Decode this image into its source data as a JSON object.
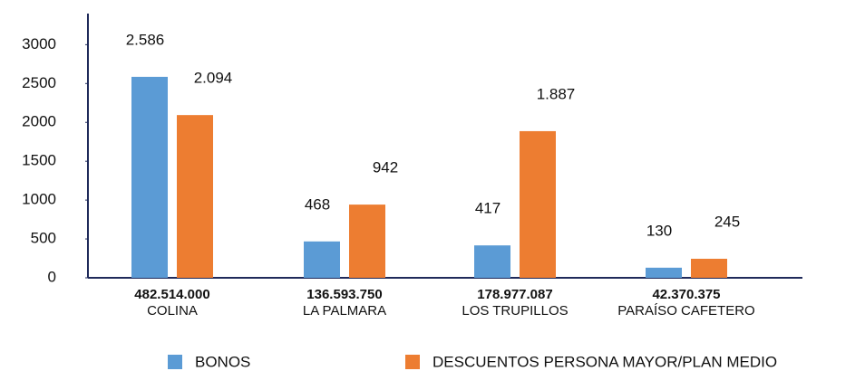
{
  "chart_data": {
    "type": "bar",
    "categories": [
      "COLINA",
      "LA PALMARA",
      "LOS TRUPILLOS",
      "PARAÍSO CAFETERO"
    ],
    "category_amounts": [
      "482.514.000",
      "136.593.750",
      "178.977.087",
      "42.370.375"
    ],
    "series": [
      {
        "name": "BONOS",
        "color": "#5b9bd5",
        "values": [
          2586,
          468,
          417,
          130
        ],
        "value_labels": [
          "2.586",
          "468",
          "417",
          "130"
        ]
      },
      {
        "name": "DESCUENTOS PERSONA MAYOR/PLAN MEDIO",
        "color": "#ed7d31",
        "values": [
          2094,
          942,
          1887,
          245
        ],
        "value_labels": [
          "2.094",
          "942",
          "1.887",
          "245"
        ]
      }
    ],
    "ylim": [
      0,
      3400
    ],
    "yticks": [
      0,
      500,
      1000,
      1500,
      2000,
      2500,
      3000
    ],
    "legend": "bottom"
  }
}
